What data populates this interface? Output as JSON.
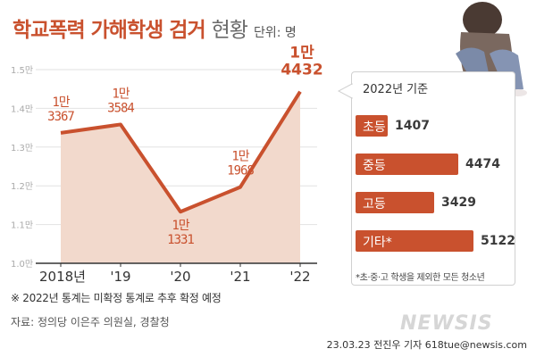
{
  "header": {
    "title": "학교폭력 가해학생 검거",
    "subtitle": "현황",
    "unit": "단위: 명"
  },
  "chart_data": [
    {
      "type": "line",
      "x": [
        "2018년",
        "'19",
        "'20",
        "'21",
        "'22"
      ],
      "values": [
        13367,
        13584,
        11331,
        11968,
        14432
      ],
      "point_labels": [
        [
          "1만",
          "3367"
        ],
        [
          "1만",
          "3584"
        ],
        [
          "1만",
          "1331"
        ],
        [
          "1만",
          "1968"
        ],
        [
          "1만",
          "4432"
        ]
      ],
      "y_ticks": [
        "1.0만",
        "1.1만",
        "1.2만",
        "1.3만",
        "1.4만",
        "1.5만"
      ],
      "ylim": [
        10000,
        15000
      ],
      "grid": true,
      "area_fill": true,
      "colors": {
        "line": "#c9512e",
        "area": "#f2d9cc",
        "grid": "#e2e2e2",
        "axis": "#333333"
      }
    },
    {
      "type": "bar",
      "orientation": "horizontal",
      "title": "2022년 기준",
      "categories": [
        "초등",
        "중등",
        "고등",
        "기타*"
      ],
      "values": [
        1407,
        4474,
        3429,
        5122
      ],
      "value_labels": [
        "1407",
        "4474",
        "3429",
        "5122"
      ],
      "footnote": "*초·중·고 학생을 제외한 모든 청소년",
      "colors": {
        "bar": "#c9512e",
        "label": "#ffffff"
      }
    }
  ],
  "note": "※ 2022년 통계는 미확정 통계로 추후 확정 예정",
  "source": "자료: 정의당 이은주 의원실, 경찰청",
  "credit": "23.03.23 전진우 기자 618tue@newsis.com",
  "watermark": "NEWSIS"
}
